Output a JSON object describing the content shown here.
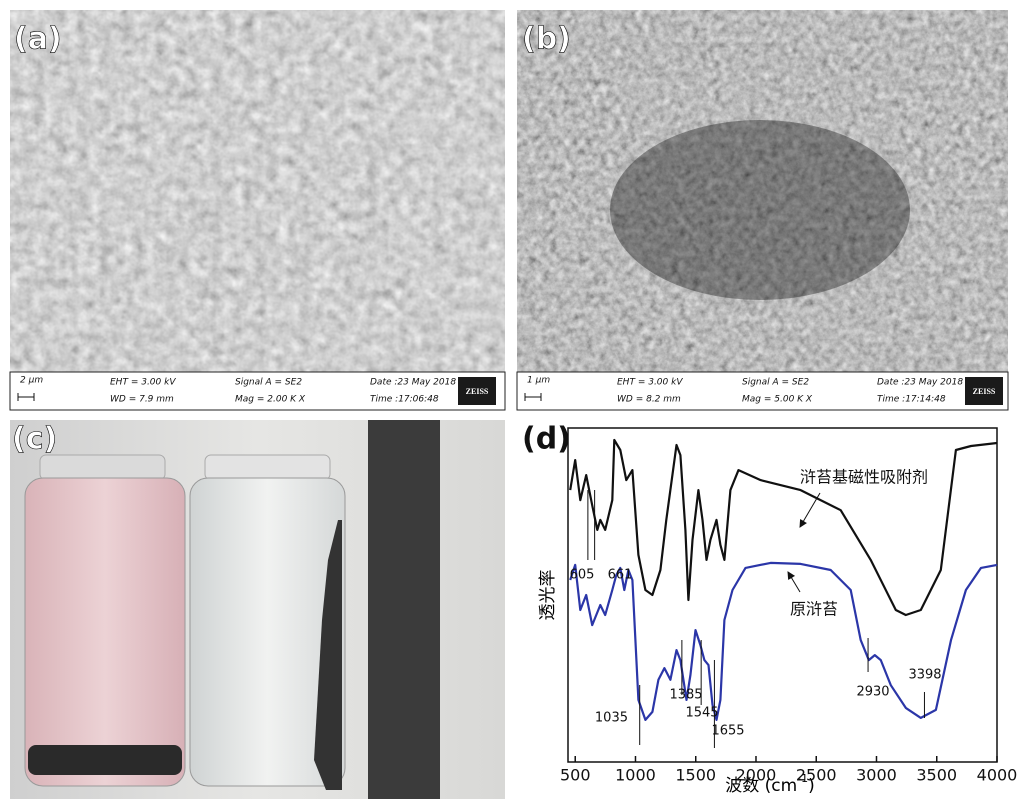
{
  "panels": [
    {
      "label": "(a)",
      "sem": {
        "scale": "2 µm",
        "eht": "EHT = 3.00 kV",
        "wd": "WD = 7.9 mm",
        "signal": "Signal A = SE2",
        "mag": "Mag = 2.00 K X",
        "date": "Date :23 May 2018",
        "time": "Time :17:06:48",
        "logo": "ZEISS"
      }
    },
    {
      "label": "(b)",
      "sem": {
        "scale": "1 µm",
        "eht": "EHT = 3.00 kV",
        "wd": "WD = 8.2 mm",
        "signal": "Signal A = SE2",
        "mag": "Mag = 5.00 K X",
        "date": "Date :23 May 2018",
        "time": "Time :17:14:48",
        "logo": "ZEISS"
      }
    },
    {
      "label": "(c)"
    },
    {
      "label": "(d)"
    }
  ],
  "chart_data": {
    "type": "line",
    "xlabel": "波数 (cm",
    "xlabel_sup": "-1",
    "xlabel_end": ")",
    "ylabel": "透光率",
    "xlim": [
      440,
      4000
    ],
    "ylim": [
      0,
      100
    ],
    "xticks": [
      500,
      1000,
      1500,
      2000,
      2500,
      3000,
      3500,
      4000
    ],
    "series": [
      {
        "name": "浒苔基磁性吸附剂",
        "color": "#111111",
        "x": [
          458,
          500,
          542,
          591,
          641,
          683,
          708,
          749,
          808,
          824,
          874,
          924,
          974,
          1024,
          1082,
          1140,
          1207,
          1256,
          1306,
          1340,
          1373,
          1414,
          1439,
          1473,
          1522,
          1556,
          1589,
          1622,
          1672,
          1705,
          1738,
          1788,
          1855,
          2038,
          2370,
          2703,
          2952,
          3160,
          3243,
          3368,
          3534,
          3659,
          3784,
          4000
        ],
        "values": [
          81.4,
          90.4,
          78.4,
          85.9,
          76.9,
          69.5,
          72.5,
          69.5,
          78.4,
          96.4,
          93.4,
          84.4,
          87.4,
          62,
          51.5,
          50,
          57.5,
          72.5,
          85.9,
          94.9,
          91.9,
          69.5,
          48.5,
          66.5,
          81.4,
          72.5,
          60.5,
          66.5,
          72.5,
          65,
          60.5,
          81.4,
          87.4,
          84.4,
          81.4,
          75.4,
          60.5,
          45.5,
          44,
          45.5,
          57.5,
          93.4,
          94.6,
          95.5
        ],
        "peaks": [
          605,
          661
        ]
      },
      {
        "name": "原浒苔",
        "color": "#2b36a8",
        "x": [
          458,
          500,
          542,
          591,
          641,
          708,
          749,
          808,
          841,
          874,
          907,
          941,
          974,
          1024,
          1082,
          1140,
          1190,
          1240,
          1290,
          1340,
          1373,
          1423,
          1456,
          1498,
          1539,
          1572,
          1606,
          1639,
          1672,
          1705,
          1738,
          1805,
          1913,
          2121,
          2370,
          2620,
          2786,
          2869,
          2936,
          2986,
          3036,
          3119,
          3243,
          3368,
          3493,
          3618,
          3742,
          3867,
          4000
        ],
        "values": [
          54.5,
          59,
          45.5,
          50,
          41,
          47,
          44,
          51.5,
          56,
          58.1,
          51.5,
          57.5,
          54.5,
          18.6,
          12.6,
          15,
          24.6,
          28.1,
          24.6,
          33.5,
          30.5,
          18.6,
          26,
          39.5,
          35,
          30.5,
          29,
          17.1,
          12.6,
          18.6,
          42.5,
          51.5,
          58.1,
          59.6,
          59.3,
          57.5,
          51.5,
          36.5,
          30.5,
          32,
          30.5,
          23,
          16.2,
          13.2,
          15.6,
          36.5,
          51.5,
          58.1,
          59
        ],
        "peaks": [
          1035,
          1385,
          1545,
          1655,
          2930,
          3398
        ]
      }
    ]
  }
}
